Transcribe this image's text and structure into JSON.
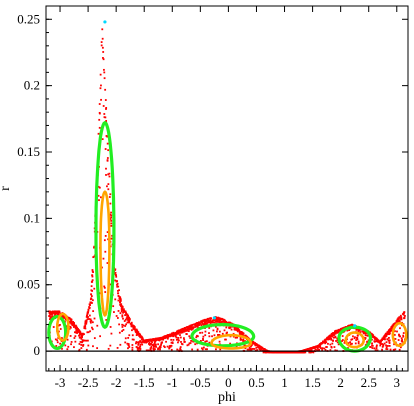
{
  "chart_data": {
    "type": "scatter",
    "xlabel": "phi",
    "ylabel": "r",
    "xlim": [
      -3.25,
      3.2
    ],
    "ylim": [
      -0.015,
      0.26
    ],
    "xticks": [
      "-3",
      "-2.5",
      "-2",
      "-1.5",
      "-1",
      "-0.5",
      "0",
      "0.5",
      "1",
      "1.5",
      "2",
      "2.5",
      "3"
    ],
    "xtick_values": [
      -3,
      -2.5,
      -2,
      -1.5,
      -1,
      -0.5,
      0,
      0.5,
      1,
      1.5,
      2,
      2.5,
      3
    ],
    "yticks": [
      "0",
      "0.05",
      "0.1",
      "0.15",
      "0.2",
      "0.25"
    ],
    "ytick_values": [
      0,
      0.05,
      0.1,
      0.15,
      0.2,
      0.25
    ],
    "grid": false,
    "legend": "none",
    "series": [
      {
        "color": "#ff0000",
        "shape": "outer chaotic sea",
        "points": [
          [
            -3.2,
            0.03
          ],
          [
            -3.0,
            0.03
          ],
          [
            -2.8,
            0.024
          ],
          [
            -2.6,
            0.012
          ],
          [
            -2.45,
            0.04
          ],
          [
            -2.35,
            0.12
          ],
          [
            -2.25,
            0.245
          ],
          [
            -2.15,
            0.16
          ],
          [
            -2.05,
            0.07
          ],
          [
            -1.9,
            0.035
          ],
          [
            -1.7,
            0.02
          ],
          [
            -1.5,
            0.008
          ],
          [
            -1.2,
            0.01
          ],
          [
            -0.8,
            0.017
          ],
          [
            -0.4,
            0.024
          ],
          [
            -0.2,
            0.026
          ],
          [
            0.1,
            0.02
          ],
          [
            0.4,
            0.008
          ],
          [
            0.7,
            0.0
          ],
          [
            1.0,
            -0.001
          ],
          [
            1.3,
            0.0
          ],
          [
            1.6,
            0.004
          ],
          [
            1.9,
            0.015
          ],
          [
            2.2,
            0.02
          ],
          [
            2.5,
            0.015
          ],
          [
            2.7,
            0.007
          ],
          [
            2.9,
            0.018
          ],
          [
            3.05,
            0.026
          ],
          [
            3.15,
            0.03
          ]
        ]
      },
      {
        "color": "#22ee22",
        "shape": "resonance islands",
        "islands": [
          {
            "center": [
              -2.2,
              0.09
            ],
            "phi_halfwidth": 0.16,
            "r_range": [
              0.018,
              0.172
            ]
          },
          {
            "center": [
              -0.1,
              0.011
            ],
            "phi_halfwidth": 0.55,
            "r_range": [
              0.004,
              0.02
            ]
          },
          {
            "center": [
              2.25,
              0.01
            ],
            "phi_halfwidth": 0.28,
            "r_range": [
              0.0,
              0.018
            ]
          },
          {
            "center": [
              -3.05,
              0.014
            ],
            "phi_halfwidth": 0.15,
            "r_range": [
              0.002,
              0.026
            ]
          }
        ]
      },
      {
        "color": "#ffa500",
        "shape": "inner tori",
        "islands": [
          {
            "center": [
              -2.2,
              0.08
            ],
            "phi_halfwidth": 0.08,
            "r_range": [
              0.027,
              0.12
            ]
          },
          {
            "center": [
              0.05,
              0.006
            ],
            "phi_halfwidth": 0.35,
            "r_range": [
              0.002,
              0.012
            ]
          },
          {
            "center": [
              2.25,
              0.008
            ],
            "phi_halfwidth": 0.16,
            "r_range": [
              0.003,
              0.014
            ]
          },
          {
            "center": [
              -2.95,
              0.018
            ],
            "phi_halfwidth": 0.1,
            "r_range": [
              0.008,
              0.028
            ]
          },
          {
            "center": [
              3.05,
              0.012
            ],
            "phi_halfwidth": 0.12,
            "r_range": [
              0.004,
              0.021
            ]
          }
        ]
      },
      {
        "color": "#00d8ff",
        "shape": "trace near separatrix",
        "points": [
          [
            -2.2,
            0.248
          ],
          [
            -0.25,
            0.025
          ],
          [
            2.25,
            0.019
          ]
        ]
      },
      {
        "color": "#000000",
        "shape": "baseline",
        "points": [
          [
            -3.25,
            0.0
          ],
          [
            3.2,
            0.0
          ]
        ]
      }
    ]
  }
}
